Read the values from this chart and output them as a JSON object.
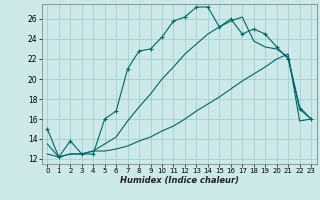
{
  "xlabel": "Humidex (Indice chaleur)",
  "bg_color": "#cce8e8",
  "grid_color": "#99cccc",
  "line_color": "#006666",
  "xlim": [
    -0.5,
    23.5
  ],
  "ylim": [
    11.5,
    27.5
  ],
  "xticks": [
    0,
    1,
    2,
    3,
    4,
    5,
    6,
    7,
    8,
    9,
    10,
    11,
    12,
    13,
    14,
    15,
    16,
    17,
    18,
    19,
    20,
    21,
    22,
    23
  ],
  "yticks": [
    12,
    14,
    16,
    18,
    20,
    22,
    24,
    26
  ],
  "series1_x": [
    0,
    1,
    2,
    3,
    4,
    5,
    6,
    7,
    8,
    9,
    10,
    11,
    12,
    13,
    14,
    15,
    16,
    17,
    18,
    19,
    20,
    21,
    22,
    23
  ],
  "series1_y": [
    15.0,
    12.2,
    13.8,
    12.5,
    12.5,
    16.0,
    16.8,
    21.0,
    22.8,
    23.0,
    24.2,
    25.8,
    26.2,
    27.2,
    27.2,
    25.2,
    26.0,
    24.5,
    25.0,
    24.5,
    23.2,
    22.0,
    17.0,
    16.0
  ],
  "series2_x": [
    0,
    1,
    2,
    3,
    4,
    5,
    6,
    7,
    8,
    9,
    10,
    11,
    12,
    13,
    14,
    15,
    16,
    17,
    18,
    19,
    20,
    21,
    22,
    23
  ],
  "series2_y": [
    12.5,
    12.2,
    12.5,
    12.5,
    12.8,
    12.8,
    13.0,
    13.3,
    13.8,
    14.2,
    14.8,
    15.3,
    16.0,
    16.8,
    17.5,
    18.2,
    19.0,
    19.8,
    20.5,
    21.2,
    22.0,
    22.5,
    15.8,
    16.0
  ],
  "series3_x": [
    0,
    1,
    2,
    3,
    4,
    5,
    6,
    7,
    8,
    9,
    10,
    11,
    12,
    13,
    14,
    15,
    16,
    17,
    18,
    19,
    20,
    21,
    22,
    23
  ],
  "series3_y": [
    13.5,
    12.2,
    12.5,
    12.5,
    12.8,
    13.5,
    14.2,
    15.8,
    17.2,
    18.5,
    20.0,
    21.2,
    22.5,
    23.5,
    24.5,
    25.2,
    25.8,
    26.2,
    23.8,
    23.2,
    23.0,
    22.2,
    17.2,
    16.0
  ],
  "xlabel_fontsize": 6.0,
  "xtick_fontsize": 5.0,
  "ytick_fontsize": 5.5
}
